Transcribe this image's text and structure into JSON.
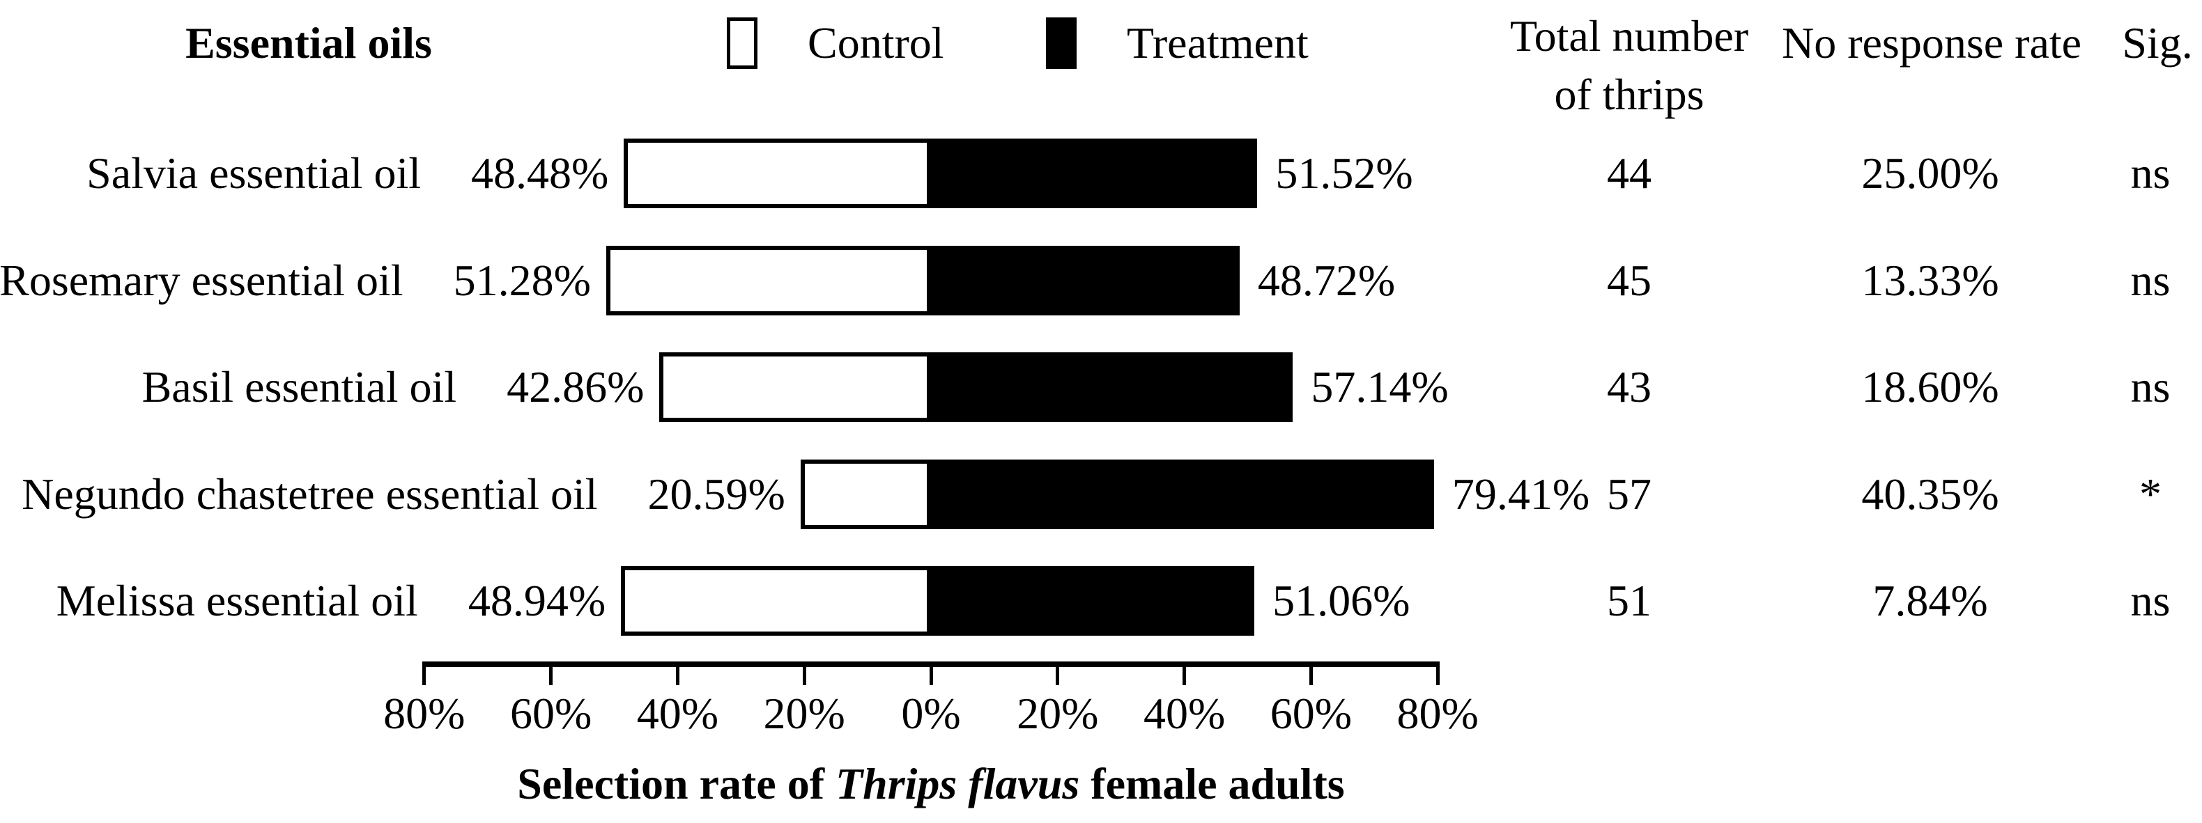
{
  "figure": {
    "headers": {
      "essential_oils": "Essential oils",
      "total_line1": "Total number",
      "total_line2": "of thrips",
      "no_response": "No response rate",
      "sig": "Sig."
    },
    "legend": {
      "control": "Control",
      "treatment": "Treatment"
    },
    "x_axis": {
      "title_prefix": "Selection rate of ",
      "title_italic": "Thrips flavus",
      "title_suffix": " female adults"
    }
  },
  "chart_data": {
    "type": "bar",
    "orientation": "horizontal-diverging",
    "title": "",
    "xlabel": "Selection rate of Thrips flavus female adults",
    "xlabel_italic_part": "Thrips flavus",
    "axis_range_pct": [
      -80,
      80
    ],
    "axis_tick_step_pct": 20,
    "axis_ticks": [
      "80%",
      "60%",
      "40%",
      "20%",
      "0%",
      "20%",
      "40%",
      "60%",
      "80%"
    ],
    "grid": false,
    "legend_position": "top",
    "categories": [
      "Salvia essential oil",
      "Rosemary essential oil",
      "Basil essential oil",
      "Negundo chastetree essential oil",
      "Melissa essential oil"
    ],
    "series": [
      {
        "name": "Control",
        "color": "#ffffff",
        "values": [
          48.48,
          51.28,
          42.86,
          20.59,
          48.94
        ]
      },
      {
        "name": "Treatment",
        "color": "#000000",
        "values": [
          51.52,
          48.72,
          57.14,
          79.41,
          51.06
        ]
      }
    ],
    "table_columns": [
      "Total number of thrips",
      "No response rate",
      "Sig."
    ],
    "rows": [
      {
        "oil": "Salvia essential oil",
        "control": 48.48,
        "control_label": "48.48%",
        "treatment": 51.52,
        "treatment_label": "51.52%",
        "total_thrips": "44",
        "no_response_rate": "25.00%",
        "sig": "ns"
      },
      {
        "oil": "Rosemary essential oil",
        "control": 51.28,
        "control_label": "51.28%",
        "treatment": 48.72,
        "treatment_label": "48.72%",
        "total_thrips": "45",
        "no_response_rate": "13.33%",
        "sig": "ns"
      },
      {
        "oil": "Basil essential oil",
        "control": 42.86,
        "control_label": "42.86%",
        "treatment": 57.14,
        "treatment_label": "57.14%",
        "total_thrips": "43",
        "no_response_rate": "18.60%",
        "sig": "ns"
      },
      {
        "oil": "Negundo chastetree essential oil",
        "control": 20.59,
        "control_label": "20.59%",
        "treatment": 79.41,
        "treatment_label": "79.41%",
        "total_thrips": "57",
        "no_response_rate": "40.35%",
        "sig": "*"
      },
      {
        "oil": "Melissa essential oil",
        "control": 48.94,
        "control_label": "48.94%",
        "treatment": 51.06,
        "treatment_label": "51.06%",
        "total_thrips": "51",
        "no_response_rate": "7.84%",
        "sig": "ns"
      }
    ]
  }
}
